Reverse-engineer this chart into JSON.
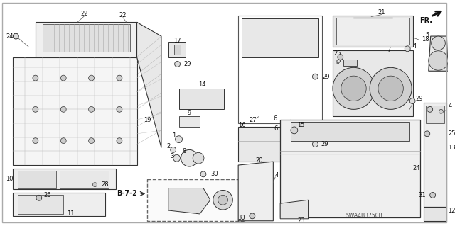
{
  "fig_width": 6.4,
  "fig_height": 3.19,
  "dpi": 100,
  "bg": "#ffffff",
  "lc": "#333333",
  "tc": "#111111",
  "diagram_label": "SWA4B3750B",
  "fr_label": "FR.",
  "b72_label": "B-7-2"
}
